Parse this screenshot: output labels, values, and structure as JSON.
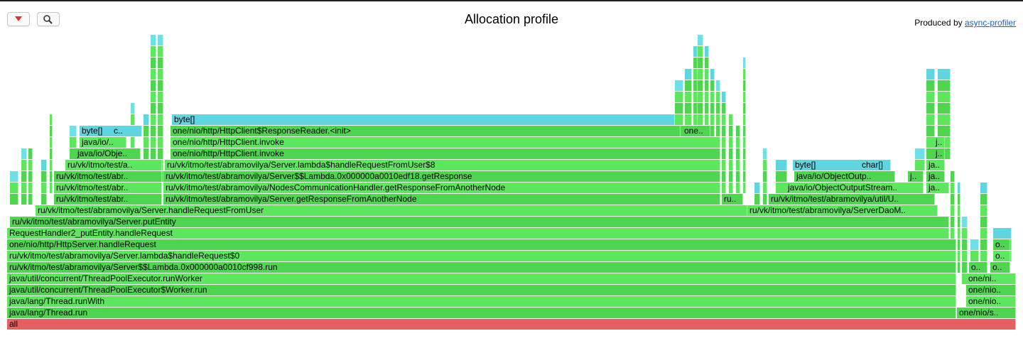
{
  "toolbar": {
    "reverse_button": "reverse",
    "search_button": "search"
  },
  "header": {
    "title": "Allocation profile",
    "credits_prefix": "Produced by",
    "credits_link": "async-profiler"
  },
  "colors": {
    "green": "#5fe65f",
    "green_alt": "#4fd54f",
    "aqua": "#5fd6df",
    "aqua_alt": "#6fe0e8",
    "red": "#e36161"
  },
  "frames": [
    {
      "level": 0,
      "x0": 10,
      "x1": 1430,
      "name": "all",
      "color": "red"
    },
    {
      "level": 1,
      "x0": 10,
      "x1": 1346,
      "name": "java/lang/Thread.run"
    },
    {
      "level": 1,
      "x0": 1347,
      "x1": 1430,
      "name": "one/nio/s.."
    },
    {
      "level": 2,
      "x0": 10,
      "x1": 1346,
      "name": "java/lang/Thread.runWith"
    },
    {
      "level": 2,
      "x0": 1360,
      "x1": 1430,
      "name": "one/nio.."
    },
    {
      "level": 3,
      "x0": 10,
      "x1": 1346,
      "name": "java/util/concurrent/ThreadPoolExecutor$Worker.run"
    },
    {
      "level": 3,
      "x0": 1360,
      "x1": 1430,
      "name": "one/nio.."
    },
    {
      "level": 4,
      "x0": 10,
      "x1": 1346,
      "name": "java/util/concurrent/ThreadPoolExecutor.runWorker"
    },
    {
      "level": 4,
      "x0": 1360,
      "x1": 1430,
      "name": "one/ni.."
    },
    {
      "level": 5,
      "x0": 10,
      "x1": 1346,
      "name": "ru/vk/itmo/test/abramovilya/Server$$Lambda.0x000000a0010cf998.run"
    },
    {
      "level": 5,
      "x0": 1364,
      "x1": 1390,
      "name": "o.."
    },
    {
      "level": 5,
      "x0": 1394,
      "x1": 1422,
      "name": "o.."
    },
    {
      "level": 6,
      "x0": 10,
      "x1": 1346,
      "name": "ru/vk/itmo/test/abramovilya/Server.lambda$handleRequest$0"
    },
    {
      "level": 6,
      "x0": 1398,
      "x1": 1422,
      "name": "o.."
    },
    {
      "level": 7,
      "x0": 10,
      "x1": 1346,
      "name": "one/nio/http/HttpServer.handleRequest"
    },
    {
      "level": 7,
      "x0": 1398,
      "x1": 1422,
      "name": "o.."
    },
    {
      "level": 8,
      "x0": 10,
      "x1": 1336,
      "name": "RequestHandler2_putEntity.handleRequest"
    },
    {
      "level": 9,
      "x0": 14,
      "x1": 1336,
      "name": "ru/vk/itmo/test/abramovilya/Server.putEntity"
    },
    {
      "level": 10,
      "x0": 50,
      "x1": 1052,
      "name": "ru/vk/itmo/test/abramovilya/Server.handleRequestFromUser"
    },
    {
      "level": 10,
      "x0": 1052,
      "x1": 1320,
      "name": "ru/vk/itmo/test/abramovilya/ServerDaoM.."
    },
    {
      "level": 11,
      "x0": 76,
      "x1": 228,
      "name": "ru/vk/itmo/test/abr.."
    },
    {
      "level": 11,
      "x0": 230,
      "x1": 1014,
      "name": "ru/vk/itmo/test/abramovilya/Server.getResponseFromAnotherNode"
    },
    {
      "level": 11,
      "x0": 1016,
      "x1": 1046,
      "name": "ru.."
    },
    {
      "level": 11,
      "x0": 1082,
      "x1": 1316,
      "name": "ru/vk/itmo/test/abramovilya/util/U.."
    },
    {
      "level": 12,
      "x0": 76,
      "x1": 228,
      "name": "ru/vk/itmo/test/abr.."
    },
    {
      "level": 12,
      "x0": 230,
      "x1": 1014,
      "name": "ru/vk/itmo/test/abramovilya/NodesCommunicationHandler.getResponseFromAnotherNode"
    },
    {
      "level": 12,
      "x0": 1106,
      "x1": 1300,
      "name": "java/io/ObjectOutputStream.."
    },
    {
      "level": 12,
      "x0": 1304,
      "x1": 1336,
      "name": "ja.."
    },
    {
      "level": 13,
      "x0": 76,
      "x1": 228,
      "name": "ru/vk/itmo/test/abr.."
    },
    {
      "level": 13,
      "x0": 230,
      "x1": 1014,
      "name": "ru/vk/itmo/test/abramovilya/Server$$Lambda.0x000000a0010edf18.getResponse"
    },
    {
      "level": 13,
      "x0": 1118,
      "x1": 1260,
      "name": "java/io/ObjectOutp.."
    },
    {
      "level": 13,
      "x0": 1278,
      "x1": 1300,
      "name": "j.."
    },
    {
      "level": 13,
      "x0": 1304,
      "x1": 1330,
      "name": "ja.."
    },
    {
      "level": 14,
      "x0": 92,
      "x1": 228,
      "name": "ru/vk/itmo/test/a.."
    },
    {
      "level": 14,
      "x0": 232,
      "x1": 1014,
      "name": "ru/vk/itmo/test/abramovilya/Server.lambda$handleRequestFromUser$8"
    },
    {
      "level": 14,
      "x0": 1116,
      "x1": 1254,
      "name": "byte[]",
      "color": "aqua"
    },
    {
      "level": 14,
      "x0": 1210,
      "x1": 1254,
      "name": "char[]",
      "color": "aqua"
    },
    {
      "level": 14,
      "x0": 1304,
      "x1": 1330,
      "name": "ja.."
    },
    {
      "level": 15,
      "x0": 106,
      "x1": 198,
      "name": "java/io/Obje.."
    },
    {
      "level": 15,
      "x0": 240,
      "x1": 1014,
      "name": "one/nio/http/HttpClient.invoke"
    },
    {
      "level": 15,
      "x0": 1314,
      "x1": 1330,
      "name": "j.."
    },
    {
      "level": 16,
      "x0": 112,
      "x1": 178,
      "name": "java/io/.."
    },
    {
      "level": 16,
      "x0": 240,
      "x1": 1014,
      "name": "one/nio/http/HttpClient.invoke"
    },
    {
      "level": 16,
      "x0": 1314,
      "x1": 1330,
      "name": "j.."
    },
    {
      "level": 17,
      "x0": 112,
      "x1": 200,
      "name": "byte[]",
      "color": "aqua"
    },
    {
      "level": 17,
      "x0": 157,
      "x1": 200,
      "name": "c..",
      "color": "aqua"
    },
    {
      "level": 17,
      "x0": 240,
      "x1": 958,
      "name": "one/nio/http/HttpClient$ResponseReader.<init>"
    },
    {
      "level": 17,
      "x0": 960,
      "x1": 1000,
      "name": "one.."
    },
    {
      "level": 18,
      "x0": 242,
      "x1": 950,
      "name": "byte[]",
      "color": "aqua"
    }
  ]
}
